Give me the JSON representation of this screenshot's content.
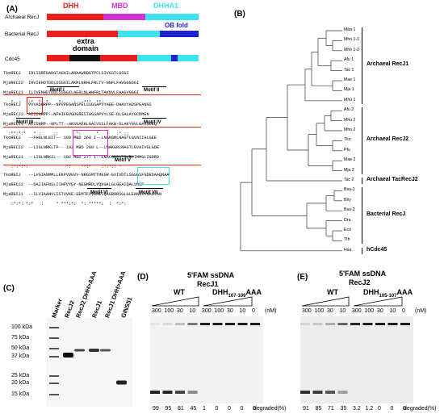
{
  "panels": {
    "A": "(A)",
    "B": "(B)",
    "C": "(C)",
    "D": "(D)",
    "E": "(E)"
  },
  "panelA": {
    "domain_labels": {
      "dhh": "DHH",
      "mbd": "MBD",
      "dhha1": "DHHA1",
      "ob": "OB fold",
      "extra": "extra\ndomain"
    },
    "rows": [
      {
        "name": "Archaeal RecJ"
      },
      {
        "name": "Bacterial RecJ"
      },
      {
        "name": "Cdc45"
      }
    ],
    "colors": {
      "dhh": "#e8211c",
      "mbd": "#d233d2",
      "dhha1": "#3fe3f0",
      "ob": "#1c23c8",
      "extra": "#111111"
    },
    "alignment": [
      {
        "id": "b1",
        "lines": [
          "TkoRECJ   IRLISRFDADGTAGAILARAAWRDGTPCLSIVGSTLGSGI",
          "MjaRECJ2  IRVIEHDTDDLDSGGILAKMLNRHLFRLTV-NNFLFAVGGGSGI",
          "MjaRECJ1  ILIVENHDTDDLSSGGILAERLNLHWFRLTAKNVLFAAGVGGGI"
        ],
        "stars": "   *  :  *:*  ** *    *:    :  :***  **:"
      },
      {
        "id": "b2",
        "lines": [
          "TkoRECJ   VVVADHRPP--NPVPEGANSPELSSGSAPVYAEE-DHAVYADSPEANGS",
          "MjaRECJ2  AIIDHRPP--NPHIFGVGDGRESTAGSAPVYLSE-DLSALAYGCDMEN",
          "MjaRECJ1  AIIDHRP--NPLTT--AKSGAEKLGACVSSLFAKW-DLAKYNVLGAVGDEQ"
        ],
        "stars": "  :**:*:*   * :     ::       *:      *   :   :* ::"
      },
      {
        "id": "b3",
        "lines": [
          "TkoRECJ   --FHGLNLEIT-- 189 MBD 268 I--LNAKGRLNAGTLGVAIIGLGEE",
          "MjaRECJ2  --LIGLNRKLTP-- 192 MBD 280 L--LNAKGRLNAGTLGVAIVGLGDE",
          "MjaRECJ1  --LIGLNRKIL-- 192 MBD 277 I--ENACGRFQTGVRLIMMGLIGDRD"
        ],
        "stars": "   :*:*:*:               *:    **:*    :*:*:: *"
      },
      {
        "id": "b4",
        "lines": [
          "TkoRECJ   --LVGIANMMLLEKPVVGVV-NRGSMTTMEGR-GVIVDTLSGSGSFGDEDAAQNAA",
          "MjaRECJ2  --DAIIAFNSLIIHPVYGY-NEGMRDLYQKGKLGLGEAIQALVRSP",
          "MjaRECJ1  --ILVIAANVLISTVVKE-GEMTFVVEAEIQAGRHRSGLGLEANGVVNAGVAN"
        ],
        "stars": "   :*:*: *:*   :     * ***:*:  *: *****:  :  *:*:"
      }
    ],
    "motifs": [
      "Motif I",
      "Motif II",
      "Motif III",
      "Motif IV",
      "Motif V",
      "Motif VI",
      "Motif VII"
    ]
  },
  "panelB": {
    "leaves": [
      "Mba 1",
      "Mho 1-1",
      "Mho 1-2",
      "Afu 1",
      "Tac 1",
      "Mae 1",
      "Mja 1",
      "Mhu 1",
      "Afu 2",
      "Mhu 2",
      "Mho 2",
      "Tko",
      "Pfu",
      "Mae 2",
      "Mja 2",
      "Tac 2",
      "Bsu-1",
      "Bhy",
      "Bsu-2",
      "Dra",
      "Eco",
      "Tth",
      "Hsa"
    ],
    "clades": [
      {
        "label": "Archaeal RecJ1"
      },
      {
        "label": "Archaeal RecJ2"
      },
      {
        "label": "Archaeal TacRecJ2"
      },
      {
        "label": "Bacterial RecJ"
      },
      {
        "label": "hCdc45"
      }
    ]
  },
  "panelC": {
    "lanes": [
      "Marker",
      "RecJ2",
      "RecJ2 DHH>AAA",
      "RecJ1",
      "RecJ1 DHH>AAA",
      "GINS51"
    ],
    "markers": [
      "100 kDa",
      "75 kDa",
      "50 kDa",
      "37 kDa",
      "25 kDa",
      "20 kDa",
      "15 kDa"
    ]
  },
  "panelD": {
    "title_line1": "5'FAM ssDNA",
    "title_line2": "RecJ1",
    "wt": "WT",
    "mut_prefix": "DHH",
    "mut_sub": "107-109",
    "mut_suffix": "AAA",
    "conc": [
      "300",
      "100",
      "30",
      "10",
      "300",
      "100",
      "30",
      "10",
      "0"
    ],
    "unit": "(nM)",
    "degraded": [
      "99",
      "95",
      "81",
      "45",
      "1",
      "0",
      "0",
      "0",
      "0"
    ],
    "degraded_label": "degraded(%)"
  },
  "panelE": {
    "title_line1": "5'FAM ssDNA",
    "title_line2": "RecJ2",
    "wt": "WT",
    "mut_prefix": "DHH",
    "mut_sub": "105-107",
    "mut_suffix": "AAA",
    "conc": [
      "300",
      "100",
      "30",
      "10",
      "300",
      "100",
      "30",
      "10",
      "0"
    ],
    "unit": "(nM)",
    "degraded": [
      "91",
      "85",
      "71",
      "35",
      "3.2",
      "1.2",
      "0",
      "0",
      "0"
    ],
    "degraded_label": "degraded(%)"
  }
}
